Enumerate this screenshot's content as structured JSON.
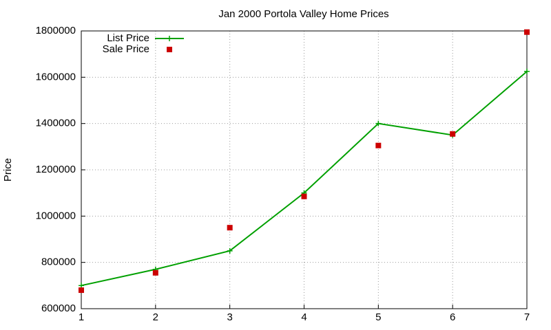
{
  "chart_data": {
    "type": "line",
    "title": "Jan 2000 Portola Valley Home Prices",
    "y_label": "Price",
    "x": [
      1,
      2,
      3,
      4,
      5,
      6,
      7
    ],
    "series": [
      {
        "name": "List Price",
        "color": "#00a000",
        "mode": "lines+points",
        "values": [
          700000,
          770000,
          850000,
          1100000,
          1400000,
          1350000,
          1625000
        ]
      },
      {
        "name": "Sale Price",
        "color": "#cc0000",
        "mode": "points",
        "values": [
          680000,
          755000,
          950000,
          1085000,
          1305000,
          1355000,
          1795000
        ]
      }
    ],
    "xlim": [
      1,
      7
    ],
    "xticks": [
      1,
      2,
      3,
      4,
      5,
      6,
      7
    ],
    "ylim": [
      600000,
      1800000
    ],
    "yticks": [
      600000,
      800000,
      1000000,
      1200000,
      1400000,
      1600000,
      1800000
    ],
    "grid": true,
    "legend": "top-left"
  }
}
